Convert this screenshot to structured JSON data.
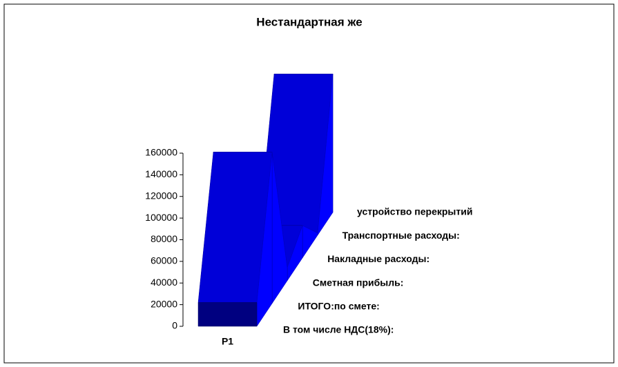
{
  "chart_data": {
    "type": "area3d",
    "title": "Нестандартная же",
    "categories": [
      "P1"
    ],
    "series": [
      {
        "name": "В том числе НДС(18%):",
        "values": [
          22000
        ]
      },
      {
        "name": "ИТОГО:по смете:",
        "values": [
          140000
        ]
      },
      {
        "name": "Сметная прибыль:",
        "values": [
          12000
        ]
      },
      {
        "name": "Накладные расходы:",
        "values": [
          30000
        ]
      },
      {
        "name": "Транспортные расходы:",
        "values": [
          2000
        ]
      },
      {
        "name": "устройство перекрытий",
        "values": [
          128000
        ]
      }
    ],
    "color": "#0000ff",
    "ylim": [
      0,
      160000
    ],
    "yticks": [
      0,
      20000,
      40000,
      60000,
      80000,
      100000,
      120000,
      140000,
      160000
    ]
  }
}
